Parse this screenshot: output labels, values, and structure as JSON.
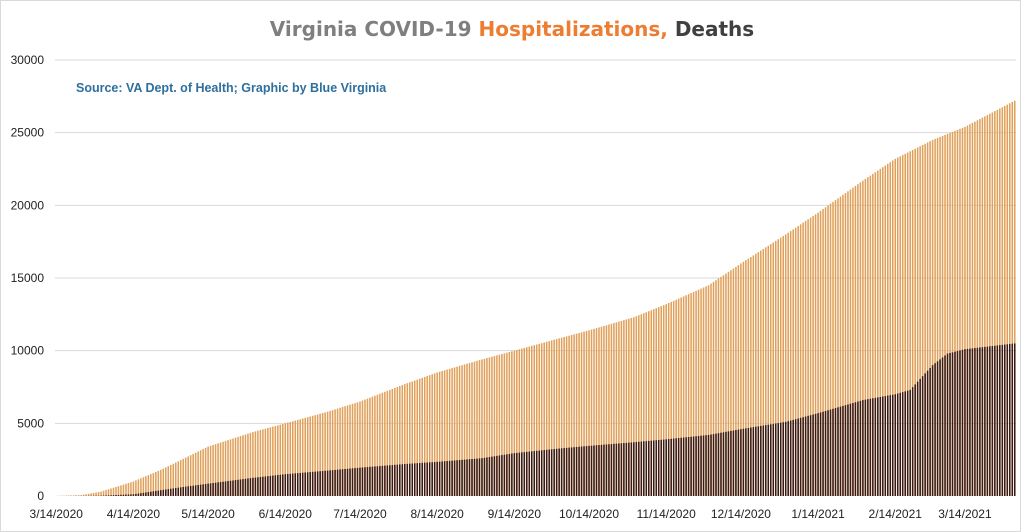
{
  "chart_data": {
    "type": "bar",
    "title_parts": [
      {
        "text": "Virginia COVID-19 ",
        "color": "#7f7f7f"
      },
      {
        "text": "Hospitalizations, ",
        "color": "#ed7d31"
      },
      {
        "text": "Deaths",
        "color": "#404040"
      }
    ],
    "source": "Source: VA Dept. of Health; Graphic by Blue Virginia",
    "ylim": [
      0,
      30000
    ],
    "yticks": [
      0,
      5000,
      10000,
      15000,
      20000,
      25000,
      30000
    ],
    "xtick_labels": [
      "3/14/2020",
      "4/14/2020",
      "5/14/2020",
      "6/14/2020",
      "7/14/2020",
      "8/14/2020",
      "9/14/2020",
      "10/14/2020",
      "11/14/2020",
      "12/14/2020",
      "1/14/2021",
      "2/14/2021",
      "3/14/2021"
    ],
    "grid": true,
    "legend": "none",
    "x_start": "3/14/2020",
    "x_end": "4/3/2021",
    "series": [
      {
        "name": "Hospitalizations",
        "color": "#e0a05a",
        "points": [
          [
            "3/14/2020",
            10
          ],
          [
            "3/24/2020",
            60
          ],
          [
            "4/1/2020",
            300
          ],
          [
            "4/14/2020",
            1000
          ],
          [
            "4/25/2020",
            1800
          ],
          [
            "5/1/2020",
            2300
          ],
          [
            "5/14/2020",
            3400
          ],
          [
            "6/1/2020",
            4400
          ],
          [
            "6/14/2020",
            5000
          ],
          [
            "7/1/2020",
            5800
          ],
          [
            "7/14/2020",
            6500
          ],
          [
            "8/1/2020",
            7700
          ],
          [
            "8/14/2020",
            8500
          ],
          [
            "9/1/2020",
            9400
          ],
          [
            "9/14/2020",
            10000
          ],
          [
            "10/1/2020",
            10800
          ],
          [
            "10/14/2020",
            11400
          ],
          [
            "11/1/2020",
            12300
          ],
          [
            "11/14/2020",
            13200
          ],
          [
            "12/1/2020",
            14500
          ],
          [
            "12/14/2020",
            16000
          ],
          [
            "1/1/2021",
            18000
          ],
          [
            "1/14/2021",
            19500
          ],
          [
            "2/1/2021",
            21700
          ],
          [
            "2/14/2021",
            23200
          ],
          [
            "3/1/2021",
            24500
          ],
          [
            "3/14/2021",
            25400
          ],
          [
            "4/3/2021",
            27200
          ]
        ]
      },
      {
        "name": "Deaths",
        "color": "#3a1a12",
        "points": [
          [
            "3/14/2020",
            0
          ],
          [
            "3/24/2020",
            5
          ],
          [
            "4/1/2020",
            20
          ],
          [
            "4/14/2020",
            120
          ],
          [
            "5/1/2020",
            550
          ],
          [
            "5/14/2020",
            850
          ],
          [
            "6/1/2020",
            1250
          ],
          [
            "6/14/2020",
            1500
          ],
          [
            "7/1/2020",
            1750
          ],
          [
            "7/14/2020",
            1950
          ],
          [
            "8/1/2020",
            2200
          ],
          [
            "8/14/2020",
            2350
          ],
          [
            "9/1/2020",
            2600
          ],
          [
            "9/14/2020",
            2950
          ],
          [
            "10/1/2020",
            3250
          ],
          [
            "10/14/2020",
            3450
          ],
          [
            "11/1/2020",
            3700
          ],
          [
            "11/14/2020",
            3900
          ],
          [
            "12/1/2020",
            4200
          ],
          [
            "12/14/2020",
            4600
          ],
          [
            "1/1/2021",
            5100
          ],
          [
            "1/14/2021",
            5700
          ],
          [
            "2/1/2021",
            6600
          ],
          [
            "2/14/2021",
            7000
          ],
          [
            "2/20/2021",
            7300
          ],
          [
            "3/1/2021",
            9000
          ],
          [
            "3/7/2021",
            9800
          ],
          [
            "3/14/2021",
            10100
          ],
          [
            "4/3/2021",
            10500
          ]
        ]
      }
    ]
  }
}
